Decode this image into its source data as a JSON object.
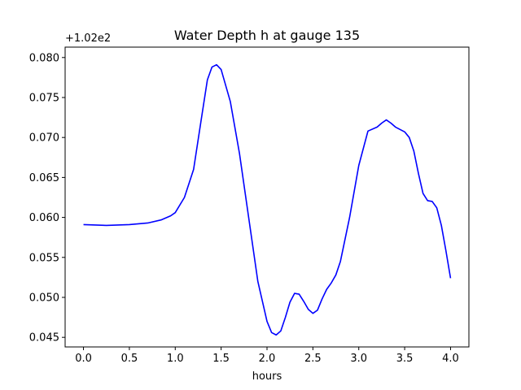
{
  "chart_data": {
    "type": "line",
    "title": "Water Depth h at gauge 135",
    "xlabel": "hours",
    "ylabel": "",
    "y_offset_text": "+1.02e2",
    "xlim": [
      -0.2,
      4.2
    ],
    "ylim": [
      0.0438,
      0.0813
    ],
    "x_ticks": [
      "0.0",
      "0.5",
      "1.0",
      "1.5",
      "2.0",
      "2.5",
      "3.0",
      "3.5",
      "4.0"
    ],
    "y_ticks": [
      "0.045",
      "0.050",
      "0.055",
      "0.060",
      "0.065",
      "0.070",
      "0.075",
      "0.080"
    ],
    "grid": false,
    "series": [
      {
        "color": "#0000ff",
        "x": [
          0.0,
          0.25,
          0.5,
          0.7,
          0.85,
          0.95,
          1.0,
          1.1,
          1.2,
          1.28,
          1.35,
          1.4,
          1.45,
          1.5,
          1.6,
          1.7,
          1.8,
          1.9,
          2.0,
          2.05,
          2.1,
          2.15,
          2.2,
          2.25,
          2.3,
          2.35,
          2.4,
          2.45,
          2.5,
          2.55,
          2.6,
          2.65,
          2.7,
          2.75,
          2.8,
          2.9,
          3.0,
          3.1,
          3.2,
          3.25,
          3.3,
          3.35,
          3.4,
          3.5,
          3.55,
          3.6,
          3.65,
          3.7,
          3.75,
          3.8,
          3.85,
          3.9,
          3.95,
          4.0
        ],
        "y": [
          0.0591,
          0.059,
          0.0591,
          0.0593,
          0.0597,
          0.0602,
          0.0606,
          0.0625,
          0.066,
          0.072,
          0.0772,
          0.0788,
          0.0791,
          0.0785,
          0.0745,
          0.068,
          0.06,
          0.052,
          0.047,
          0.0456,
          0.0453,
          0.0458,
          0.0475,
          0.0494,
          0.0505,
          0.0504,
          0.0495,
          0.0485,
          0.048,
          0.0484,
          0.0498,
          0.051,
          0.0518,
          0.0528,
          0.0545,
          0.06,
          0.0665,
          0.0708,
          0.0713,
          0.0718,
          0.0722,
          0.0718,
          0.0713,
          0.0707,
          0.07,
          0.0683,
          0.0655,
          0.063,
          0.0621,
          0.062,
          0.0612,
          0.059,
          0.0558,
          0.0524
        ]
      }
    ]
  }
}
